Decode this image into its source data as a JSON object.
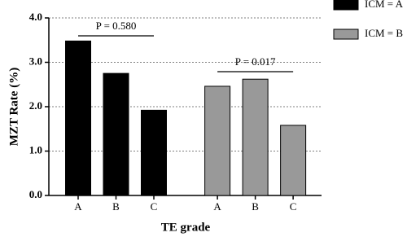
{
  "chart_data": {
    "type": "bar",
    "y_label": "MZT Rate (%)",
    "x_label": "TE grade",
    "categories": [
      "A",
      "B",
      "C",
      "A",
      "B",
      "C"
    ],
    "series": [
      {
        "name": "ICM = A",
        "color": "#000000",
        "values": [
          3.48,
          2.75,
          1.92,
          null,
          null,
          null
        ]
      },
      {
        "name": "ICM = B",
        "color": "#999999",
        "values": [
          null,
          null,
          null,
          2.46,
          2.62,
          1.58
        ]
      }
    ],
    "ylim": [
      0,
      4
    ],
    "yticks": [
      {
        "value": 0,
        "label": "0.0"
      },
      {
        "value": 1,
        "label": "1.0"
      },
      {
        "value": 2,
        "label": "2.0"
      },
      {
        "value": 3,
        "label": "3.0"
      },
      {
        "value": 4,
        "label": "4.0"
      }
    ],
    "grid": true,
    "legend": "right",
    "annotations": [
      "P = 0.580",
      "P = 0.017"
    ]
  }
}
